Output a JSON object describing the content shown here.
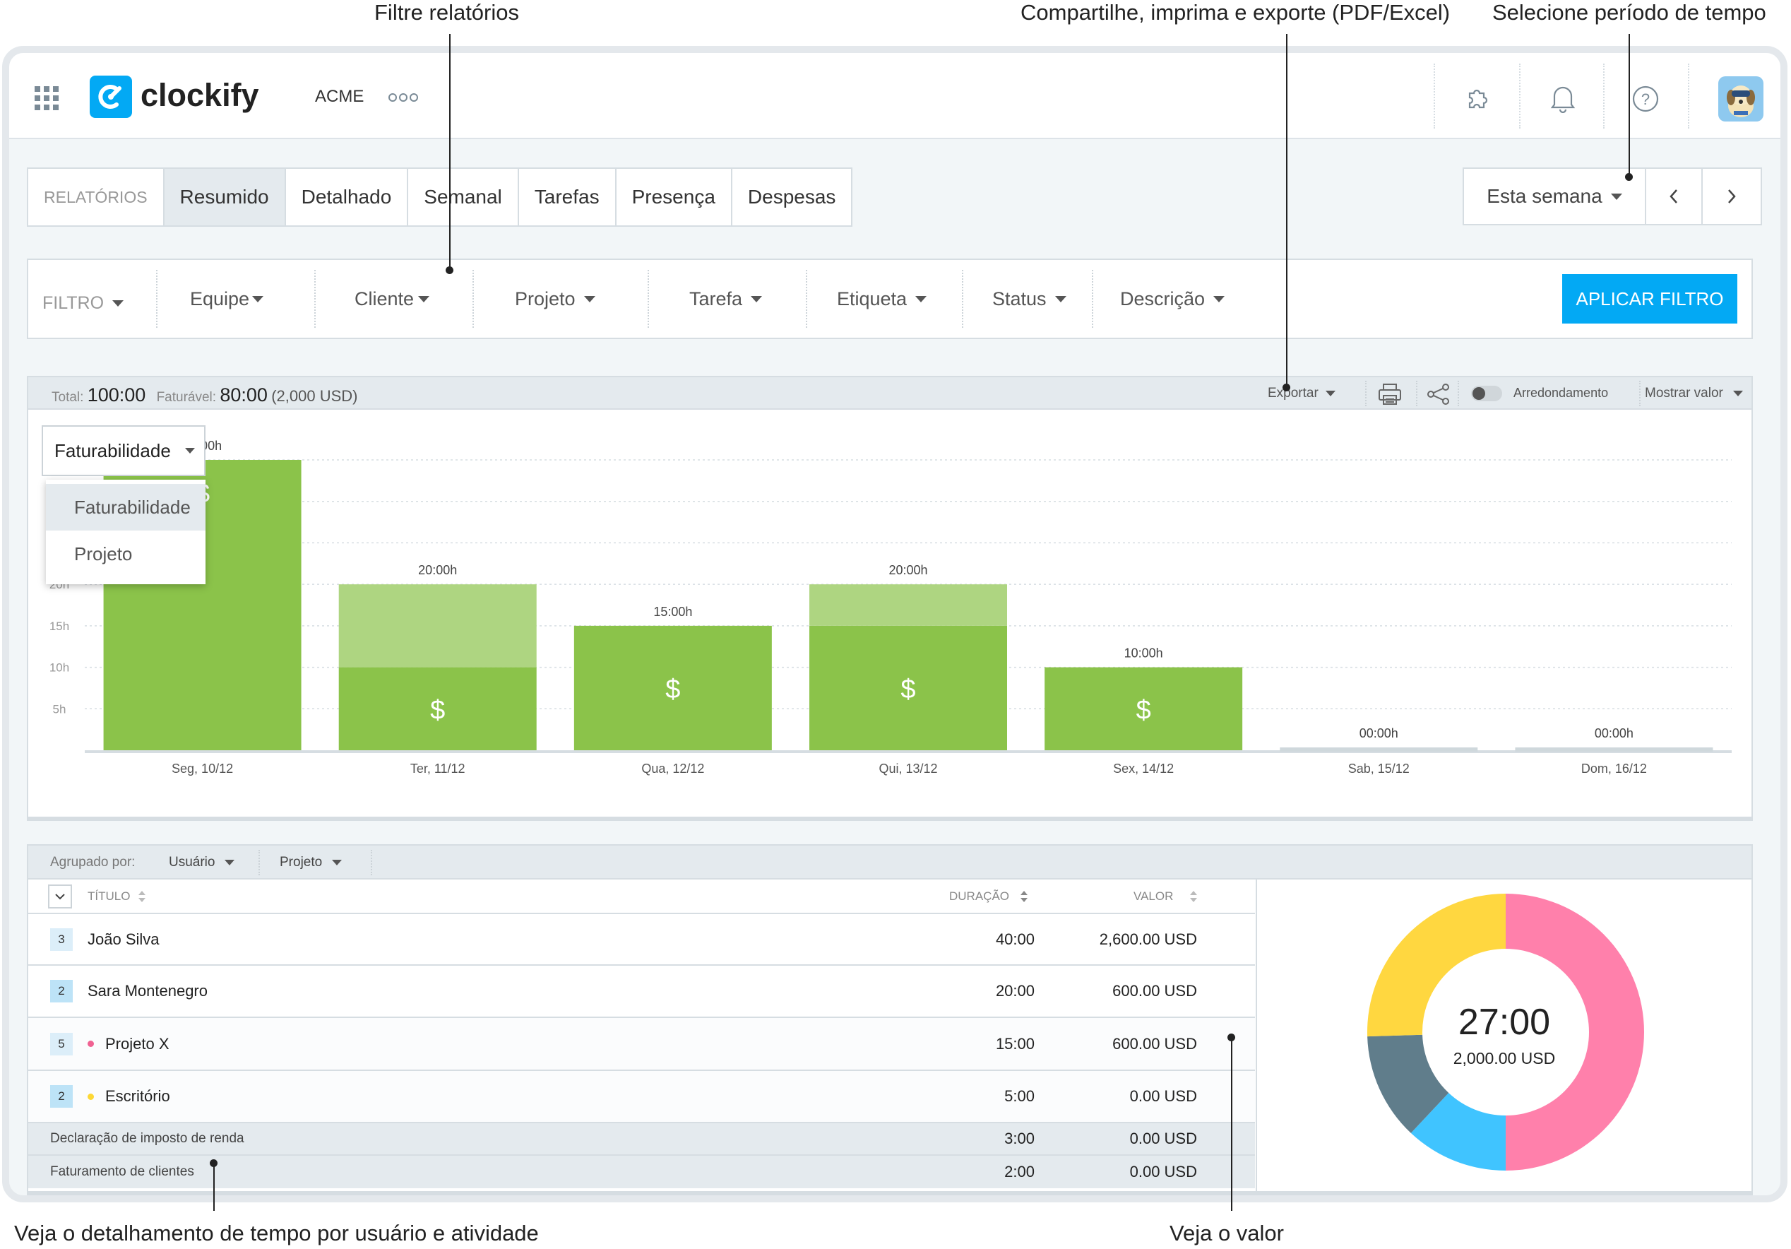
{
  "annotations": {
    "filter": "Filtre relatórios",
    "export": "Compartilhe, imprima e exporte (PDF/Excel)",
    "period": "Selecione período de tempo",
    "breakdown": "Veja o detalhamento de tempo por usuário e atividade",
    "value": "Veja o valor"
  },
  "app": {
    "name": "clockify",
    "workspace": "ACME"
  },
  "tabs": {
    "label": "RELATÓRIOS",
    "items": [
      "Resumido",
      "Detalhado",
      "Semanal",
      "Tarefas",
      "Presença",
      "Despesas"
    ],
    "active": "Resumido"
  },
  "period": {
    "label": "Esta semana"
  },
  "filters": {
    "label": "FILTRO",
    "items": [
      "Equipe",
      "Cliente",
      "Projeto",
      "Tarefa",
      "Etiqueta",
      "Status",
      "Descrição"
    ],
    "apply": "APLICAR FILTRO"
  },
  "summary": {
    "total_label": "Total:",
    "total": "100:00",
    "billable_label": "Faturável:",
    "billable": "80:00",
    "billable_amount": "(2,000 USD)",
    "export": "Exportar",
    "rounding": "Arredondamento",
    "show_value": "Mostrar valor"
  },
  "chart_dropdown": {
    "selected": "Faturabilidade",
    "options": [
      "Faturabilidade",
      "Projeto"
    ]
  },
  "chart_data": {
    "type": "bar",
    "categories": [
      "Seg, 10/12",
      "Ter, 11/12",
      "Qua, 12/12",
      "Qui, 13/12",
      "Sex, 14/12",
      "Sab, 15/12",
      "Dom, 16/12"
    ],
    "bar_labels": [
      "35:00h",
      "20:00h",
      "15:00h",
      "20:00h",
      "10:00h",
      "00:00h",
      "00:00h"
    ],
    "series": [
      {
        "values": [
          35,
          10,
          15,
          15,
          10,
          0,
          0
        ],
        "color": "#8bc34a"
      },
      {
        "values": [
          0,
          10,
          0,
          5,
          0,
          0,
          0
        ],
        "color": "#aed581"
      }
    ],
    "billable_marker": "$",
    "y_ticks": [
      "5h",
      "10h",
      "15h",
      "20h"
    ],
    "ylim": [
      0,
      35
    ],
    "grid": true
  },
  "table": {
    "group_label": "Agrupado por:",
    "group_by": [
      "Usuário",
      "Projeto"
    ],
    "columns": {
      "title": "TÍTULO",
      "duration": "DURAÇÃO",
      "value": "VALOR"
    },
    "rows": [
      {
        "count": "3",
        "title": "João Silva",
        "duration": "40:00",
        "value": "2,600.00 USD"
      },
      {
        "count": "2",
        "title": "Sara Montenegro",
        "duration": "20:00",
        "value": "600.00 USD"
      },
      {
        "count": "5",
        "title": "Projeto X",
        "dot": "#f06292",
        "duration": "15:00",
        "value": "600.00 USD"
      },
      {
        "count": "2",
        "title": "Escritório",
        "dot": "#fdd835",
        "duration": "5:00",
        "value": "0.00 USD"
      }
    ],
    "subrows": [
      {
        "title": "Declaração de imposto de renda",
        "duration": "3:00",
        "value": "0.00 USD"
      },
      {
        "title": "Faturamento de clientes",
        "duration": "2:00",
        "value": "0.00 USD"
      }
    ]
  },
  "donut": {
    "total": "27:00",
    "amount": "2,000.00 USD",
    "slices": [
      {
        "value": 50,
        "color": "#ff80ab"
      },
      {
        "value": 12,
        "color": "#40c4ff"
      },
      {
        "value": 12.5,
        "color": "#607d8b"
      },
      {
        "value": 25.5,
        "color": "#ffd740"
      }
    ]
  }
}
